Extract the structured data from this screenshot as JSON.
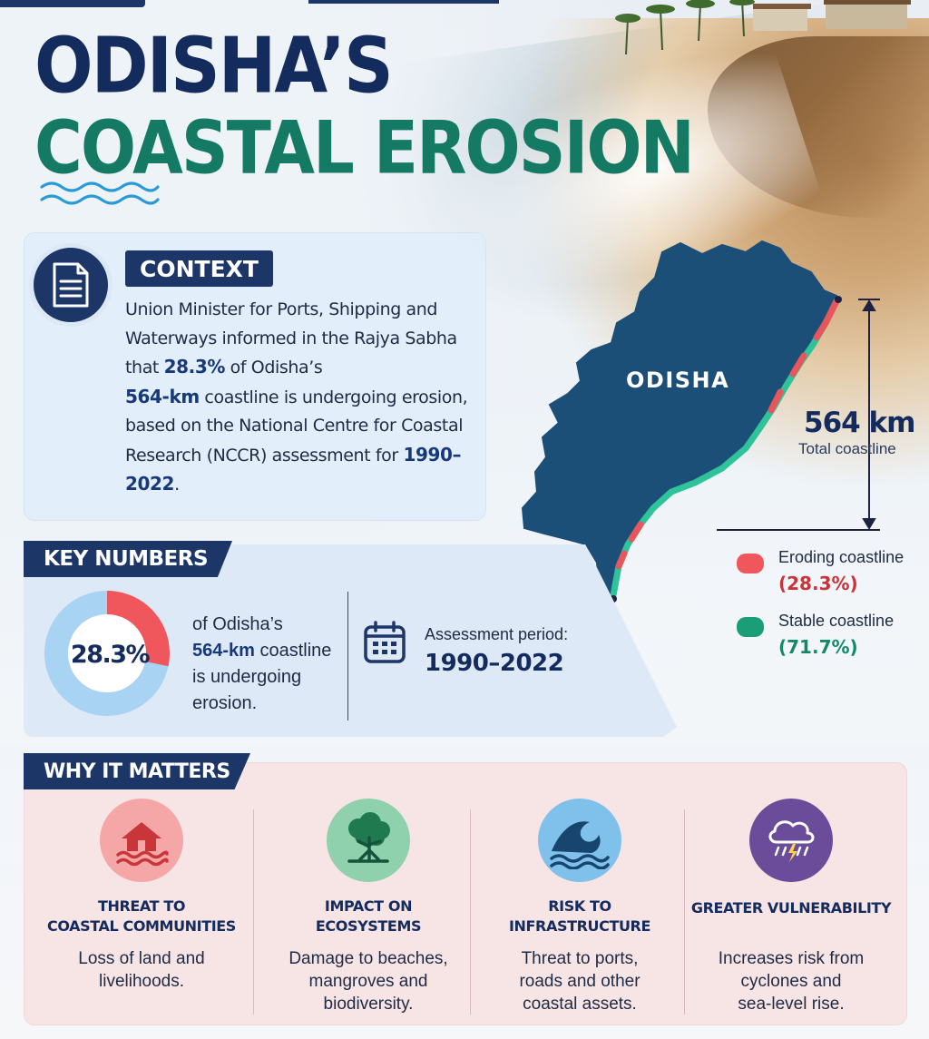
{
  "title": {
    "line1": "ODISHA’S",
    "line2": "COASTAL EROSION"
  },
  "context": {
    "tag": "CONTEXT",
    "text_parts": [
      "Union Minister for Ports, Shipping and Waterways informed in the Rajya Sabha that ",
      "28.3%",
      " of Odisha’s ",
      "564-km",
      " coastline is undergoing erosion, based on the National Centre for Coastal Research (NCCR) assessment for ",
      "1990–2022",
      "."
    ]
  },
  "map": {
    "region_label": "ODISHA",
    "coastline_length": "564 km",
    "coastline_caption": "Total coastline",
    "legend": [
      {
        "label": "Eroding coastline",
        "value": "(28.3%)",
        "color": "#e8555a"
      },
      {
        "label": "Stable coastline",
        "value": "(71.7%)",
        "color": "#1a9e78"
      }
    ],
    "land_color": "#1b4f78"
  },
  "key_numbers": {
    "tag": "KEY NUMBERS",
    "donut": {
      "value_label": "28.3%",
      "eroding_fraction": 0.283,
      "eroding_color": "#f0575c",
      "rest_color": "#a9d3f2"
    },
    "text_parts": [
      "of Odisha’s",
      "564-km",
      " coastline",
      "is undergoing",
      "erosion."
    ],
    "assessment_label": "Assessment period:",
    "assessment_value": "1990–2022"
  },
  "why": {
    "tag": "WHY IT MATTERS",
    "items": [
      {
        "icon": "flooded-house-icon",
        "title1": "THREAT TO",
        "title2": "COASTAL COMMUNITIES",
        "desc1": "Loss of land and",
        "desc2": "livelihoods.",
        "desc3": "",
        "icon_bg": "#f5a7a7"
      },
      {
        "icon": "tree-icon",
        "title1": "IMPACT ON",
        "title2": "ECOSYSTEMS",
        "desc1": "Damage to beaches,",
        "desc2": "mangroves and",
        "desc3": "biodiversity.",
        "icon_bg": "#8fd1ad"
      },
      {
        "icon": "wave-icon",
        "title1": "RISK TO",
        "title2": "INFRASTRUCTURE",
        "desc1": "Threat to ports,",
        "desc2": "roads and other",
        "desc3": "coastal assets.",
        "icon_bg": "#7fc1ea"
      },
      {
        "icon": "storm-cloud-icon",
        "title1": "GREATER VULNERABILITY",
        "title2": "",
        "desc1": "Increases risk from",
        "desc2": "cyclones and",
        "desc3": "sea-level rise.",
        "icon_bg": "#6b4c9a"
      }
    ]
  }
}
